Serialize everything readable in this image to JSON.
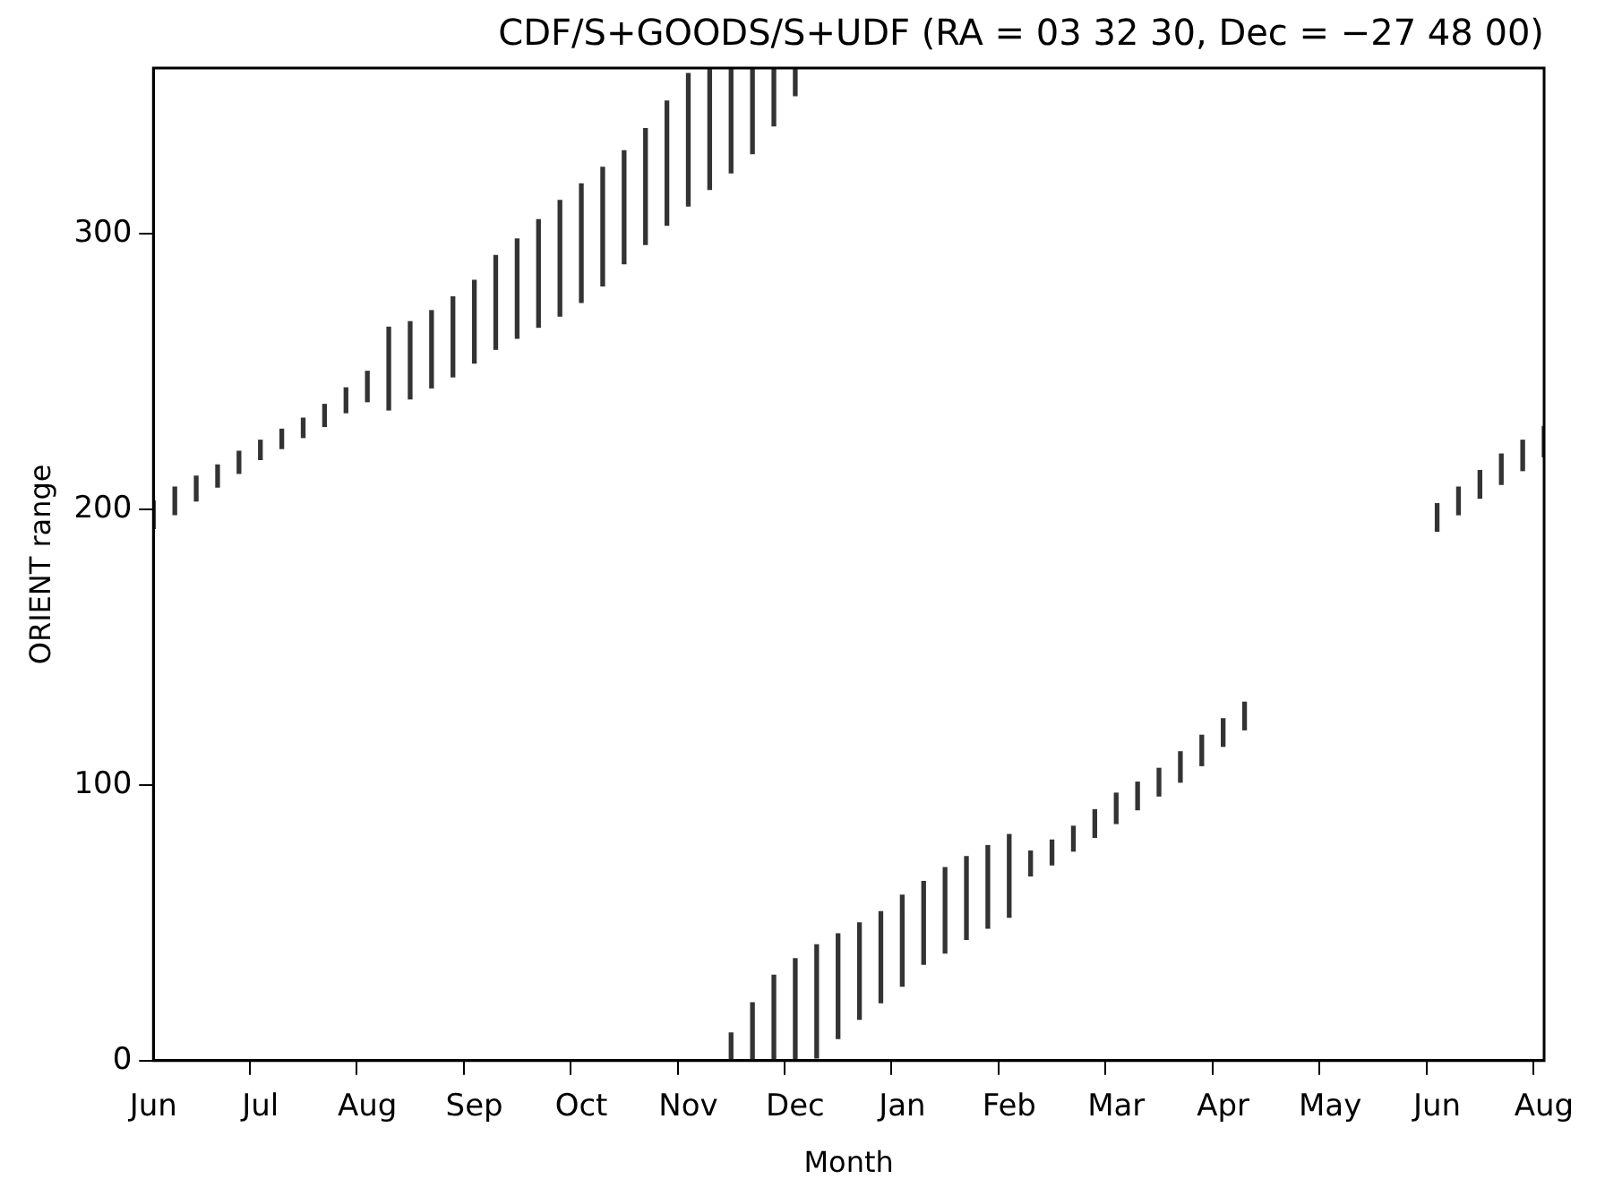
{
  "chart_data": {
    "type": "bar",
    "title": "CDF/S+GOODS/S+UDF (RA = 03 32 30, Dec = −27 48 00)",
    "xlabel": "Month",
    "ylabel": "ORIENT range",
    "categories": [
      "Jun",
      null,
      null,
      null,
      null,
      "Jul",
      null,
      null,
      null,
      null,
      "Aug",
      null,
      null,
      null,
      null,
      "Sep",
      null,
      null,
      null,
      null,
      "Oct",
      null,
      null,
      null,
      null,
      "Nov",
      null,
      null,
      null,
      null,
      "Dec",
      null,
      null,
      null,
      null,
      "Jan",
      null,
      null,
      null,
      null,
      "Feb",
      null,
      null,
      null,
      null,
      "Mar",
      null,
      null,
      null,
      null,
      "Apr",
      null,
      null,
      null,
      null,
      "May",
      null,
      null,
      null,
      null,
      "Jun",
      null,
      null,
      null,
      null,
      "Aug"
    ],
    "series": [
      {
        "color": "#333333",
        "base": [
          193,
          198,
          203,
          208,
          213,
          218,
          222,
          226,
          230,
          235,
          239,
          236,
          240,
          244,
          248,
          253,
          258,
          262,
          266,
          270,
          275,
          281,
          289,
          296,
          303,
          310,
          316,
          322,
          329,
          339,
          350,
          null,
          null,
          null,
          null,
          null,
          null,
          null,
          null,
          null,
          null,
          null,
          null,
          null,
          null,
          null,
          null,
          null,
          null,
          null,
          null,
          null,
          null,
          null,
          null,
          null,
          null,
          null,
          null,
          null,
          null,
          null,
          null,
          null,
          null,
          null
        ],
        "values": [
          10,
          10,
          9,
          8,
          8,
          7,
          7,
          7,
          8,
          9,
          11,
          30,
          28,
          28,
          29,
          30,
          34,
          36,
          39,
          42,
          43,
          43,
          41,
          42,
          45,
          48,
          44,
          38,
          31,
          21,
          10,
          null,
          null,
          null,
          null,
          null,
          null,
          null,
          null,
          null,
          null,
          null,
          null,
          null,
          null,
          null,
          null,
          null,
          null,
          null,
          null,
          null,
          null,
          null,
          null,
          null,
          null,
          null,
          null,
          null,
          null,
          null,
          null,
          null,
          null,
          null
        ]
      },
      {
        "color": "#333333",
        "base": [
          null,
          null,
          null,
          null,
          null,
          null,
          null,
          null,
          null,
          null,
          null,
          null,
          null,
          null,
          null,
          null,
          null,
          null,
          null,
          null,
          null,
          null,
          null,
          null,
          null,
          null,
          null,
          0,
          0,
          0,
          0,
          1,
          8,
          15,
          21,
          27,
          35,
          39,
          44,
          48,
          52,
          67,
          71,
          76,
          81,
          86,
          91,
          96,
          101,
          107,
          114,
          120,
          null,
          null,
          null,
          null,
          null,
          null,
          null,
          null,
          192,
          198,
          204,
          209,
          214,
          219
        ],
        "values": [
          null,
          null,
          null,
          null,
          null,
          null,
          null,
          null,
          null,
          null,
          null,
          null,
          null,
          null,
          null,
          null,
          null,
          null,
          null,
          null,
          null,
          null,
          null,
          null,
          null,
          null,
          null,
          10,
          21,
          31,
          37,
          41,
          38,
          35,
          33,
          33,
          30,
          31,
          30,
          30,
          30,
          9,
          9,
          9,
          10,
          11,
          10,
          10,
          11,
          11,
          10,
          10,
          null,
          null,
          null,
          null,
          null,
          null,
          null,
          null,
          10,
          10,
          10,
          11,
          11,
          11
        ]
      }
    ],
    "ylim": [
      0,
      360
    ],
    "yticks": [
      0,
      100,
      200,
      300
    ],
    "grid": false,
    "legend": false
  }
}
